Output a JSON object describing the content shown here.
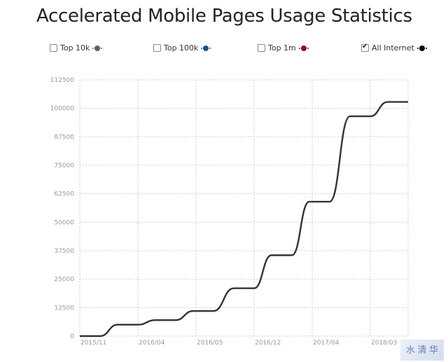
{
  "title": "Accelerated Mobile Pages Usage Statistics",
  "legend": [
    {
      "label": "Top 10k",
      "color": "#4a6e4a",
      "checked": false
    },
    {
      "label": "Top 100k",
      "color": "#1f4f8a",
      "checked": false
    },
    {
      "label": "Top 1m",
      "color": "#8b1010",
      "checked": false
    },
    {
      "label": "All Internet",
      "color": "#000000",
      "checked": true
    }
  ],
  "chart_data": {
    "type": "line",
    "title": "Accelerated Mobile Pages Usage Statistics",
    "xlabel": "",
    "ylabel": "",
    "ylim": [
      0,
      112500
    ],
    "y_ticks": [
      0,
      12500,
      25000,
      37500,
      50000,
      62500,
      75000,
      87500,
      100000,
      112500
    ],
    "x_tick_labels": [
      "2015/11",
      "2016/04",
      "2016/05",
      "2016/12",
      "2017/04",
      "2018/03"
    ],
    "grid": true,
    "series": [
      {
        "name": "All Internet",
        "color": "#333333",
        "points": [
          [
            0,
            0
          ],
          [
            0.35,
            0
          ],
          [
            0.65,
            5000
          ],
          [
            1.0,
            5000
          ],
          [
            1.3,
            7000
          ],
          [
            1.65,
            7000
          ],
          [
            1.95,
            11000
          ],
          [
            2.3,
            11000
          ],
          [
            2.65,
            21000
          ],
          [
            3.0,
            21000
          ],
          [
            3.3,
            35500
          ],
          [
            3.65,
            35500
          ],
          [
            3.95,
            59000
          ],
          [
            4.3,
            59000
          ],
          [
            4.65,
            96500
          ],
          [
            5.0,
            96500
          ],
          [
            5.3,
            102800
          ],
          [
            5.65,
            102800
          ]
        ]
      }
    ]
  },
  "watermark": "水 清 华"
}
